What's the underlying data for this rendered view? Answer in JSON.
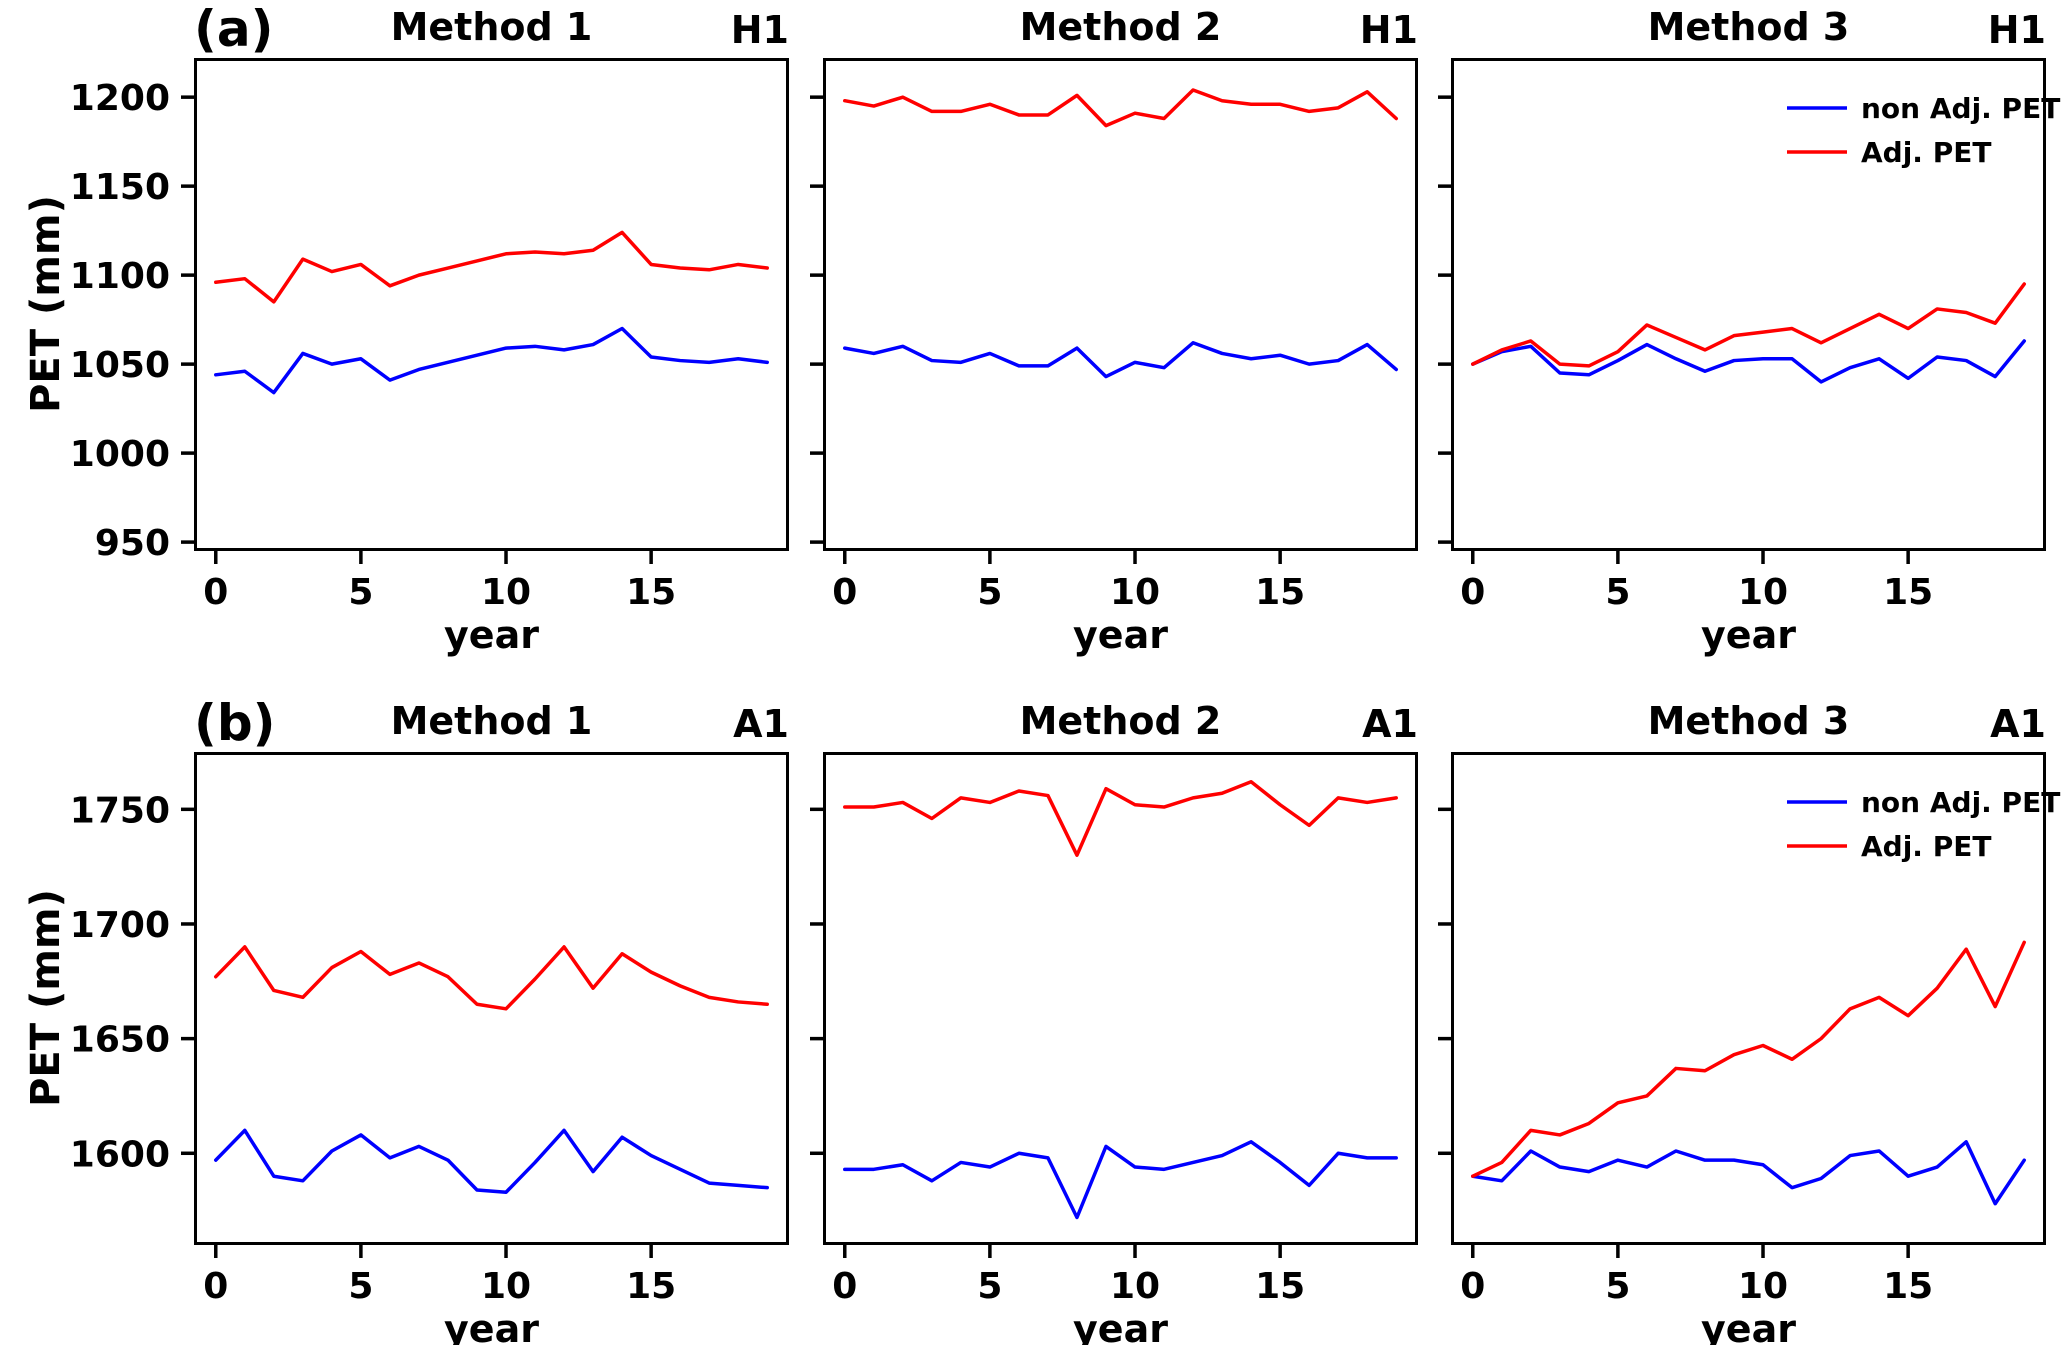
{
  "figure": {
    "background": "#ffffff",
    "line_colors": {
      "non_adj": "#0000ff",
      "adj": "#ff0000"
    },
    "spine_color": "#000000"
  },
  "axes": {
    "xlabel": "year",
    "ylabel": "PET (mm)",
    "xticks": [
      0,
      5,
      10,
      15
    ],
    "x_range": [
      -0.75,
      19.75
    ]
  },
  "legend": {
    "position": "upper right",
    "entries": [
      {
        "label": "non Adj. PET",
        "color": "#0000ff"
      },
      {
        "label": "Adj. PET",
        "color": "#ff0000"
      }
    ]
  },
  "chart_data": {
    "type": "line",
    "x": [
      0,
      1,
      2,
      3,
      4,
      5,
      6,
      7,
      8,
      9,
      10,
      11,
      12,
      13,
      14,
      15,
      16,
      17,
      18,
      19
    ],
    "rows": [
      {
        "tag": "(a)",
        "scenario": "H1",
        "ylabel": "PET (mm)",
        "ylim": [
          945,
          1222
        ],
        "yticks": [
          950,
          1000,
          1050,
          1100,
          1150,
          1200
        ],
        "panels": [
          {
            "title": "Method 1",
            "legend": false,
            "series": {
              "non_adj": [
                1044,
                1046,
                1034,
                1056,
                1050,
                1053,
                1041,
                1047,
                1051,
                1055,
                1059,
                1060,
                1058,
                1061,
                1070,
                1054,
                1052,
                1051,
                1053,
                1051
              ],
              "adj": [
                1096,
                1098,
                1085,
                1109,
                1102,
                1106,
                1094,
                1100,
                1104,
                1108,
                1112,
                1113,
                1112,
                1114,
                1124,
                1106,
                1104,
                1103,
                1106,
                1104
              ]
            }
          },
          {
            "title": "Method 2",
            "legend": false,
            "series": {
              "non_adj": [
                1059,
                1056,
                1060,
                1052,
                1051,
                1056,
                1049,
                1049,
                1059,
                1043,
                1051,
                1048,
                1062,
                1056,
                1053,
                1055,
                1050,
                1052,
                1061,
                1047
              ],
              "adj": [
                1198,
                1195,
                1200,
                1192,
                1192,
                1196,
                1190,
                1190,
                1201,
                1184,
                1191,
                1188,
                1204,
                1198,
                1196,
                1196,
                1192,
                1194,
                1203,
                1188
              ]
            }
          },
          {
            "title": "Method 3",
            "legend": true,
            "series": {
              "non_adj": [
                1050,
                1057,
                1060,
                1045,
                1044,
                1052,
                1061,
                1053,
                1046,
                1052,
                1053,
                1053,
                1040,
                1048,
                1053,
                1042,
                1054,
                1052,
                1043,
                1063
              ],
              "adj": [
                1050,
                1058,
                1063,
                1050,
                1049,
                1057,
                1072,
                1065,
                1058,
                1066,
                1068,
                1070,
                1062,
                1070,
                1078,
                1070,
                1081,
                1079,
                1073,
                1095
              ]
            }
          }
        ]
      },
      {
        "tag": "(b)",
        "scenario": "A1",
        "ylabel": "PET (mm)",
        "ylim": [
          1560,
          1775
        ],
        "yticks": [
          1600,
          1650,
          1700,
          1750
        ],
        "panels": [
          {
            "title": "Method 1",
            "legend": false,
            "series": {
              "non_adj": [
                1597,
                1610,
                1590,
                1588,
                1601,
                1608,
                1598,
                1603,
                1597,
                1584,
                1583,
                1596,
                1610,
                1592,
                1607,
                1599,
                1593,
                1587,
                1586,
                1585
              ],
              "adj": [
                1677,
                1690,
                1671,
                1668,
                1681,
                1688,
                1678,
                1683,
                1677,
                1665,
                1663,
                1676,
                1690,
                1672,
                1687,
                1679,
                1673,
                1668,
                1666,
                1665
              ]
            }
          },
          {
            "title": "Method 2",
            "legend": false,
            "series": {
              "non_adj": [
                1593,
                1593,
                1595,
                1588,
                1596,
                1594,
                1600,
                1598,
                1572,
                1603,
                1594,
                1593,
                1596,
                1599,
                1605,
                1596,
                1586,
                1600,
                1598,
                1598
              ],
              "adj": [
                1751,
                1751,
                1753,
                1746,
                1755,
                1753,
                1758,
                1756,
                1730,
                1759,
                1752,
                1751,
                1755,
                1757,
                1762,
                1752,
                1743,
                1755,
                1753,
                1755
              ]
            }
          },
          {
            "title": "Method 3",
            "legend": true,
            "series": {
              "non_adj": [
                1590,
                1588,
                1601,
                1594,
                1592,
                1597,
                1594,
                1601,
                1597,
                1597,
                1595,
                1585,
                1589,
                1599,
                1601,
                1590,
                1594,
                1605,
                1578,
                1597
              ],
              "adj": [
                1590,
                1596,
                1610,
                1608,
                1613,
                1622,
                1625,
                1637,
                1636,
                1643,
                1647,
                1641,
                1650,
                1663,
                1668,
                1660,
                1672,
                1689,
                1664,
                1692
              ]
            }
          }
        ]
      }
    ]
  }
}
